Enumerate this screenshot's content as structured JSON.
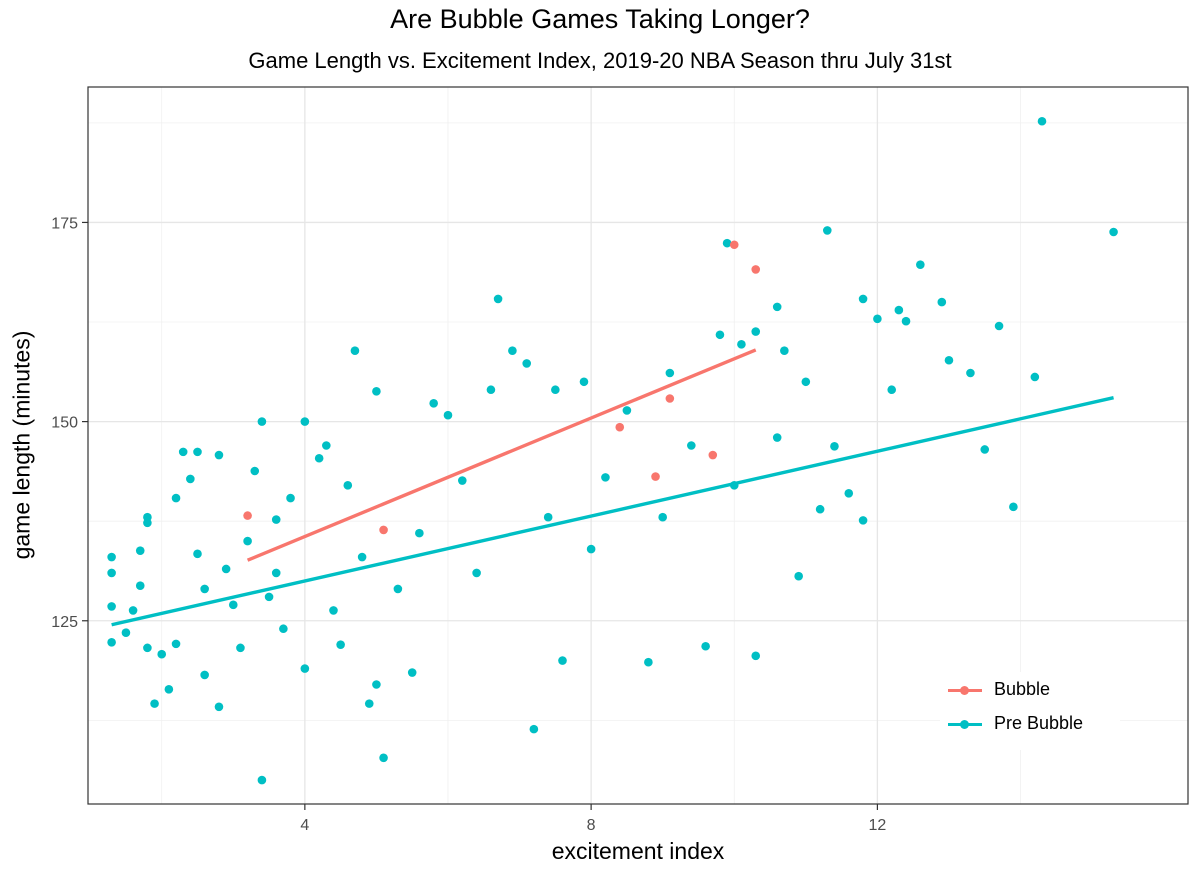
{
  "chart_data": {
    "type": "scatter",
    "title": "Are Bubble Games Taking Longer?",
    "subtitle": "Game Length vs. Excitement Index, 2019-20 NBA Season thru July 31st",
    "xlabel": "excitement index",
    "ylabel": "game length (minutes)",
    "xlim": [
      0.97,
      16.34
    ],
    "ylim": [
      102.0,
      192.0
    ],
    "x_ticks": [
      4,
      8,
      12
    ],
    "y_ticks": [
      125,
      150,
      175
    ],
    "grid": true,
    "legend_position": "bottom-right",
    "series": [
      {
        "name": "Bubble",
        "color": "#F8766D",
        "points": [
          [
            3.2,
            138.2
          ],
          [
            5.1,
            136.4
          ],
          [
            8.4,
            149.3
          ],
          [
            9.1,
            152.9
          ],
          [
            8.9,
            143.1
          ],
          [
            9.7,
            145.8
          ],
          [
            10.0,
            172.2
          ],
          [
            10.3,
            169.1
          ]
        ],
        "trend": [
          [
            3.2,
            132.6
          ],
          [
            10.3,
            159.0
          ]
        ]
      },
      {
        "name": "Pre Bubble",
        "color": "#00BFC4",
        "points": [
          [
            1.3,
            126.8
          ],
          [
            1.3,
            122.3
          ],
          [
            1.3,
            131.0
          ],
          [
            1.3,
            133.0
          ],
          [
            1.5,
            123.5
          ],
          [
            1.6,
            126.3
          ],
          [
            1.7,
            129.4
          ],
          [
            1.8,
            137.3
          ],
          [
            1.8,
            138.0
          ],
          [
            1.7,
            133.8
          ],
          [
            1.8,
            121.6
          ],
          [
            2.0,
            120.8
          ],
          [
            1.9,
            114.6
          ],
          [
            2.1,
            116.4
          ],
          [
            2.2,
            140.4
          ],
          [
            2.2,
            122.1
          ],
          [
            2.3,
            146.2
          ],
          [
            2.4,
            142.8
          ],
          [
            2.5,
            146.2
          ],
          [
            2.5,
            133.4
          ],
          [
            2.6,
            118.2
          ],
          [
            2.8,
            114.2
          ],
          [
            2.8,
            145.8
          ],
          [
            3.1,
            121.6
          ],
          [
            3.3,
            143.8
          ],
          [
            3.4,
            150.0
          ],
          [
            3.6,
            131.0
          ],
          [
            3.8,
            140.4
          ],
          [
            4.2,
            145.4
          ],
          [
            4.3,
            147.0
          ],
          [
            4.4,
            126.3
          ],
          [
            4.7,
            158.9
          ],
          [
            5.0,
            153.8
          ],
          [
            5.1,
            107.8
          ],
          [
            5.0,
            117.0
          ],
          [
            4.9,
            114.6
          ],
          [
            5.5,
            118.5
          ],
          [
            3.4,
            105.0
          ],
          [
            3.0,
            127.0
          ],
          [
            2.9,
            131.5
          ],
          [
            3.2,
            135.0
          ],
          [
            3.5,
            128.0
          ],
          [
            3.7,
            124.0
          ],
          [
            4.0,
            119.0
          ],
          [
            4.5,
            122.0
          ],
          [
            5.3,
            129.0
          ],
          [
            5.8,
            152.3
          ],
          [
            6.2,
            142.6
          ],
          [
            6.6,
            154.0
          ],
          [
            6.7,
            165.4
          ],
          [
            6.9,
            158.9
          ],
          [
            7.1,
            157.3
          ],
          [
            7.2,
            111.4
          ],
          [
            7.5,
            154.0
          ],
          [
            7.6,
            120.0
          ],
          [
            7.9,
            155.0
          ],
          [
            8.2,
            143.0
          ],
          [
            8.5,
            151.4
          ],
          [
            8.8,
            119.8
          ],
          [
            9.1,
            156.1
          ],
          [
            9.4,
            147.0
          ],
          [
            9.6,
            121.8
          ],
          [
            9.8,
            160.9
          ],
          [
            9.9,
            172.4
          ],
          [
            10.1,
            159.7
          ],
          [
            10.3,
            161.3
          ],
          [
            10.3,
            120.6
          ],
          [
            10.6,
            164.4
          ],
          [
            10.7,
            158.9
          ],
          [
            10.9,
            130.6
          ],
          [
            11.0,
            155.0
          ],
          [
            11.3,
            174.0
          ],
          [
            11.4,
            146.9
          ],
          [
            11.6,
            141.0
          ],
          [
            11.8,
            165.4
          ],
          [
            11.8,
            137.6
          ],
          [
            12.0,
            162.9
          ],
          [
            12.2,
            154.0
          ],
          [
            12.3,
            164.0
          ],
          [
            12.4,
            162.6
          ],
          [
            12.6,
            169.7
          ],
          [
            12.9,
            165.0
          ],
          [
            13.0,
            157.7
          ],
          [
            13.3,
            156.1
          ],
          [
            13.5,
            146.5
          ],
          [
            13.7,
            162.0
          ],
          [
            13.9,
            139.3
          ],
          [
            14.2,
            155.6
          ],
          [
            14.3,
            187.7
          ],
          [
            15.3,
            173.8
          ],
          [
            6.0,
            150.8
          ],
          [
            4.0,
            150.0
          ],
          [
            3.6,
            137.7
          ],
          [
            4.6,
            142.0
          ],
          [
            5.6,
            136.0
          ],
          [
            6.4,
            131.0
          ],
          [
            7.4,
            138.0
          ],
          [
            8.0,
            134.0
          ],
          [
            9.0,
            138.0
          ],
          [
            10.0,
            142.0
          ],
          [
            10.6,
            148.0
          ],
          [
            11.2,
            139.0
          ],
          [
            2.6,
            129.0
          ],
          [
            4.8,
            133.0
          ]
        ],
        "trend": [
          [
            1.3,
            124.5
          ],
          [
            15.3,
            153.0
          ]
        ]
      }
    ]
  }
}
